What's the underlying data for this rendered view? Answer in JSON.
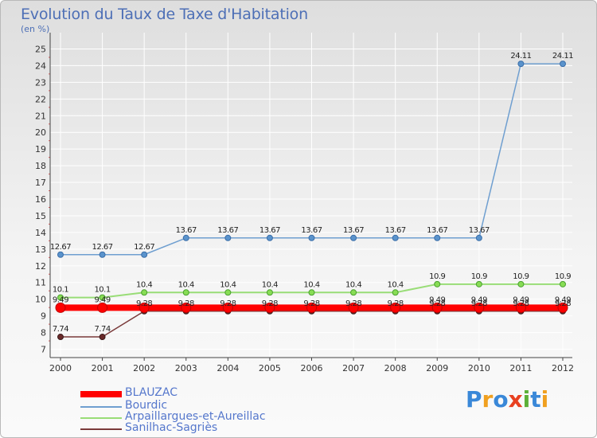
{
  "chart_data": {
    "type": "line",
    "title": "Evolution du Taux de Taxe d'Habitation",
    "subtitle": "(en %)",
    "xlabel": "",
    "ylabel": "",
    "categories": [
      "2000",
      "2001",
      "2002",
      "2003",
      "2004",
      "2005",
      "2006",
      "2007",
      "2008",
      "2009",
      "2010",
      "2011",
      "2012"
    ],
    "ylim": [
      6.5,
      25.5
    ],
    "yticks": [
      "7",
      "8",
      "9",
      "10",
      "11",
      "12",
      "13",
      "14",
      "15",
      "16",
      "17",
      "18",
      "19",
      "20",
      "21",
      "22",
      "23",
      "24",
      "25"
    ],
    "grid": true,
    "legend_position": "bottom-left",
    "series": [
      {
        "name": "BLAUZAC",
        "color": "#ff0000",
        "values": [
          9.49,
          9.49,
          9.49,
          9.49,
          9.49,
          9.49,
          9.49,
          9.49,
          9.49,
          9.49,
          9.49,
          9.49,
          9.49
        ],
        "labels": [
          "9.49",
          "9.49",
          "",
          "",
          "",
          "",
          "",
          "",
          "",
          "9.49",
          "9.49",
          "9.49",
          "9.49"
        ]
      },
      {
        "name": "Bourdic",
        "color": "#6f9fd0",
        "values": [
          12.67,
          12.67,
          12.67,
          13.67,
          13.67,
          13.67,
          13.67,
          13.67,
          13.67,
          13.67,
          13.67,
          24.11,
          24.11
        ],
        "labels": [
          "12.67",
          "12.67",
          "12.67",
          "13.67",
          "13.67",
          "13.67",
          "13.67",
          "13.67",
          "13.67",
          "13.67",
          "13.67",
          "24.11",
          "24.11"
        ]
      },
      {
        "name": "Arpaillargues-et-Aureillac",
        "color": "#99dd77",
        "values": [
          10.1,
          10.1,
          10.4,
          10.4,
          10.4,
          10.4,
          10.4,
          10.4,
          10.4,
          10.9,
          10.9,
          10.9,
          10.9
        ],
        "labels": [
          "10.1",
          "10.1",
          "10.4",
          "10.4",
          "10.4",
          "10.4",
          "10.4",
          "10.4",
          "10.4",
          "10.9",
          "10.9",
          "10.9",
          "10.9"
        ]
      },
      {
        "name": "Sanilhac-Sagriès",
        "color": "#7a3a3a",
        "values": [
          7.74,
          7.74,
          9.28,
          9.28,
          9.28,
          9.28,
          9.28,
          9.28,
          9.28,
          9.28,
          9.28,
          9.28,
          9.28
        ],
        "labels": [
          "7.74",
          "7.74",
          "9.28",
          "9.28",
          "9.28",
          "9.28",
          "9.28",
          "9.28",
          "9.28",
          "9.28",
          "9.28",
          "9.28",
          "9.28"
        ]
      }
    ]
  },
  "logo": {
    "text": "Proxiti",
    "letters": [
      "P",
      "r",
      "o",
      "x",
      "i",
      "t",
      "i"
    ],
    "colors": [
      "#3a88d8",
      "#f0a020",
      "#3a88d8",
      "#e84020",
      "#5cb038",
      "#3a88d8",
      "#f0a020"
    ]
  }
}
